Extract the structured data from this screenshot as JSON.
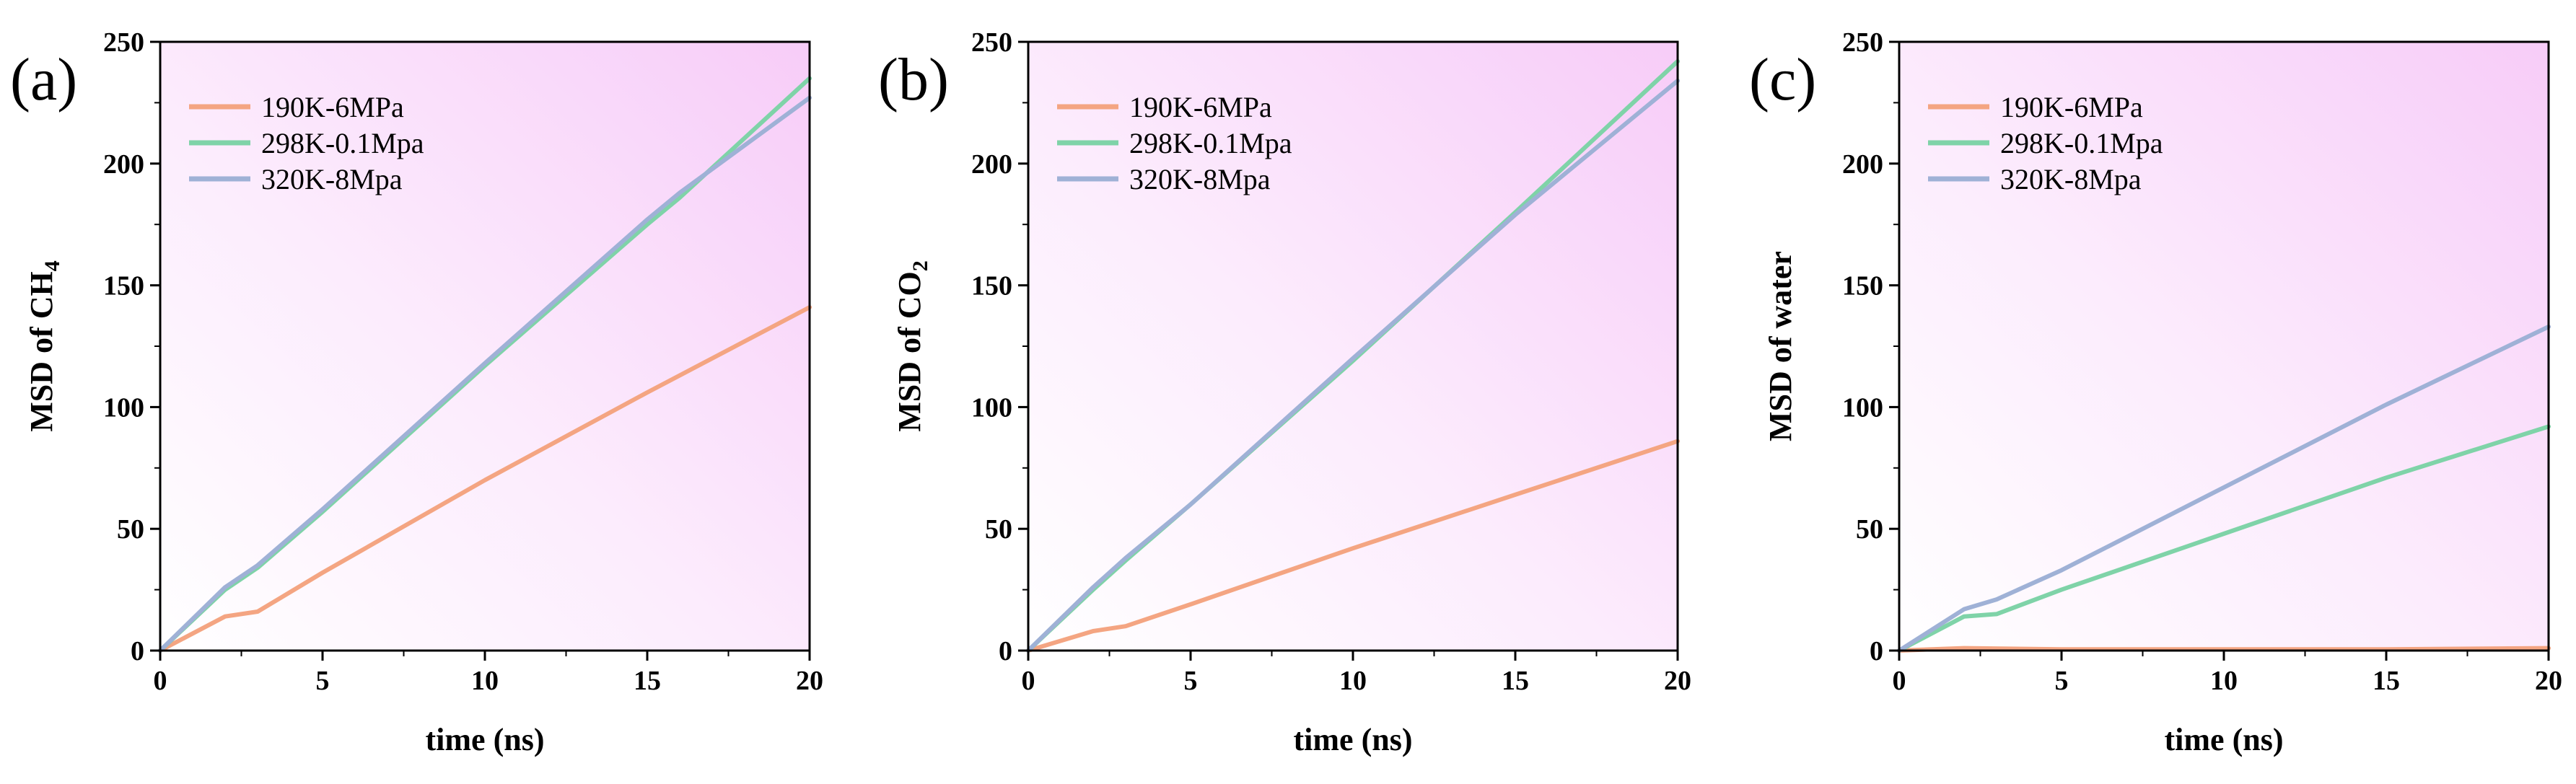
{
  "chart_data": [
    {
      "type": "line",
      "panel_label": "(a)",
      "xlabel": "time (ns)",
      "ylabel_main": "MSD of CH",
      "ylabel_sub": "4",
      "xlim": [
        0,
        20
      ],
      "ylim": [
        0,
        250
      ],
      "xticks": [
        0,
        5,
        10,
        15,
        20
      ],
      "yticks": [
        0,
        50,
        100,
        150,
        200,
        250
      ],
      "legend_position": "top-left",
      "series": [
        {
          "name": "190K-6MPa",
          "color": "#f4a582",
          "x": [
            0,
            2,
            3,
            5,
            10,
            15,
            20
          ],
          "y": [
            0,
            14,
            16,
            32,
            70,
            106,
            141
          ]
        },
        {
          "name": "298K-0.1Mpa",
          "color": "#7fd3a8",
          "x": [
            0,
            2,
            3,
            5,
            10,
            15,
            16,
            20
          ],
          "y": [
            0,
            25,
            34,
            57,
            117,
            175,
            186,
            235
          ]
        },
        {
          "name": "320K-8Mpa",
          "color": "#9fb1d6",
          "x": [
            0,
            2,
            3,
            5,
            10,
            15,
            16,
            20
          ],
          "y": [
            0,
            26,
            35,
            58,
            118,
            177,
            188,
            227
          ]
        }
      ]
    },
    {
      "type": "line",
      "panel_label": "(b)",
      "xlabel": "time (ns)",
      "ylabel_main": "MSD of CO",
      "ylabel_sub": "2",
      "xlim": [
        0,
        20
      ],
      "ylim": [
        0,
        250
      ],
      "xticks": [
        0,
        5,
        10,
        15,
        20
      ],
      "yticks": [
        0,
        50,
        100,
        150,
        200,
        250
      ],
      "legend_position": "top-left",
      "series": [
        {
          "name": "190K-6MPa",
          "color": "#f4a582",
          "x": [
            0,
            2,
            3,
            5,
            10,
            15,
            20
          ],
          "y": [
            0,
            8,
            10,
            19,
            42,
            64,
            86
          ]
        },
        {
          "name": "298K-0.1Mpa",
          "color": "#7fd3a8",
          "x": [
            0,
            2,
            3,
            5,
            10,
            15,
            20
          ],
          "y": [
            0,
            25,
            37,
            60,
            119,
            180,
            242
          ]
        },
        {
          "name": "320K-8Mpa",
          "color": "#9fb1d6",
          "x": [
            0,
            2,
            3,
            5,
            10,
            15,
            20
          ],
          "y": [
            0,
            26,
            38,
            60,
            120,
            179,
            234
          ]
        }
      ]
    },
    {
      "type": "line",
      "panel_label": "(c)",
      "xlabel": "time (ns)",
      "ylabel_main": "MSD of water",
      "ylabel_sub": "",
      "xlim": [
        0,
        20
      ],
      "ylim": [
        0,
        250
      ],
      "xticks": [
        0,
        5,
        10,
        15,
        20
      ],
      "yticks": [
        0,
        50,
        100,
        150,
        200,
        250
      ],
      "legend_position": "top-left",
      "series": [
        {
          "name": "190K-6MPa",
          "color": "#f4a582",
          "x": [
            0,
            2,
            5,
            10,
            15,
            20
          ],
          "y": [
            0,
            1,
            0.5,
            0.5,
            0.5,
            1
          ]
        },
        {
          "name": "298K-0.1Mpa",
          "color": "#7fd3a8",
          "x": [
            0,
            2,
            3,
            5,
            10,
            15,
            20
          ],
          "y": [
            0,
            14,
            15,
            25,
            48,
            71,
            92
          ]
        },
        {
          "name": "320K-8Mpa",
          "color": "#9fb1d6",
          "x": [
            0,
            2,
            3,
            5,
            10,
            15,
            20
          ],
          "y": [
            0,
            17,
            21,
            33,
            67,
            101,
            133
          ]
        }
      ]
    }
  ]
}
